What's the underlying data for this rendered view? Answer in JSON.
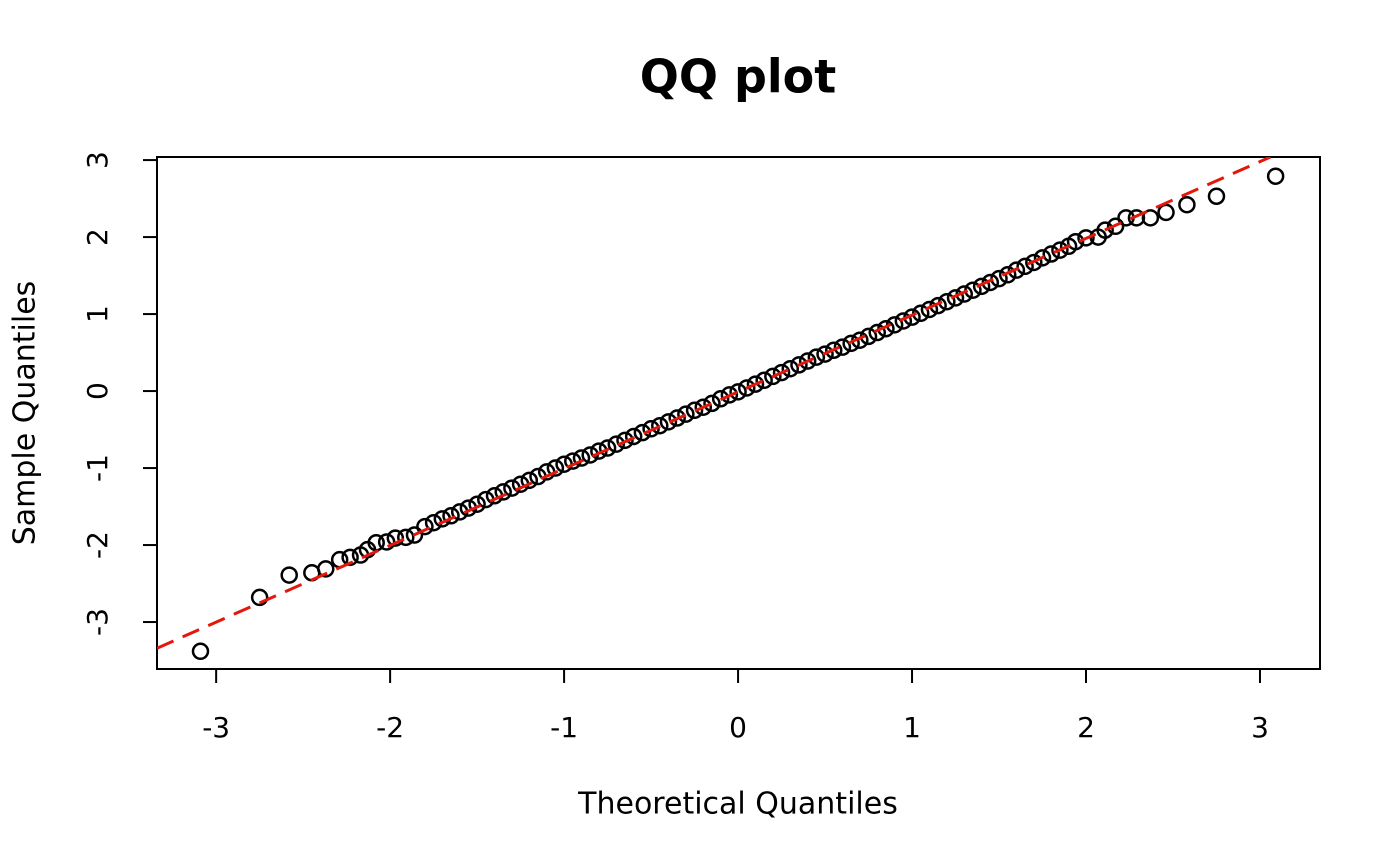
{
  "chart_data": {
    "type": "scatter",
    "title": "QQ plot",
    "x_label": "Theoretical Quantiles",
    "y_label": "Sample Quantiles",
    "x": [
      -3.09,
      -2.75,
      -2.58,
      -2.45,
      -2.37,
      -2.29,
      -2.23,
      -2.17,
      -2.13,
      -2.08,
      -2.02,
      -1.97,
      -1.91,
      -1.86,
      -1.8,
      -1.75,
      -1.7,
      -1.65,
      -1.6,
      -1.55,
      -1.5,
      -1.45,
      -1.4,
      -1.35,
      -1.3,
      -1.25,
      -1.2,
      -1.15,
      -1.1,
      -1.05,
      -1.0,
      -0.95,
      -0.9,
      -0.85,
      -0.8,
      -0.75,
      -0.7,
      -0.65,
      -0.6,
      -0.55,
      -0.5,
      -0.45,
      -0.4,
      -0.35,
      -0.3,
      -0.25,
      -0.2,
      -0.15,
      -0.1,
      -0.05,
      0,
      0.05,
      0.1,
      0.15,
      0.2,
      0.25,
      0.3,
      0.35,
      0.4,
      0.45,
      0.5,
      0.55,
      0.6,
      0.65,
      0.7,
      0.75,
      0.8,
      0.85,
      0.9,
      0.95,
      1.0,
      1.05,
      1.1,
      1.15,
      1.2,
      1.25,
      1.3,
      1.35,
      1.4,
      1.45,
      1.5,
      1.55,
      1.6,
      1.65,
      1.7,
      1.75,
      1.8,
      1.85,
      1.9,
      1.94,
      2.0,
      2.07,
      2.11,
      2.17,
      2.23,
      2.29,
      2.37,
      2.46,
      2.58,
      2.75,
      3.09
    ],
    "y": [
      -3.38,
      -2.68,
      -2.39,
      -2.36,
      -2.31,
      -2.19,
      -2.16,
      -2.13,
      -2.06,
      -1.97,
      -1.96,
      -1.91,
      -1.9,
      -1.87,
      -1.76,
      -1.71,
      -1.66,
      -1.62,
      -1.57,
      -1.52,
      -1.47,
      -1.41,
      -1.36,
      -1.31,
      -1.26,
      -1.21,
      -1.16,
      -1.11,
      -1.05,
      -1.0,
      -0.95,
      -0.91,
      -0.87,
      -0.83,
      -0.78,
      -0.74,
      -0.69,
      -0.64,
      -0.59,
      -0.54,
      -0.49,
      -0.45,
      -0.4,
      -0.35,
      -0.3,
      -0.25,
      -0.21,
      -0.16,
      -0.1,
      -0.05,
      -0.01,
      0.04,
      0.09,
      0.14,
      0.19,
      0.24,
      0.29,
      0.34,
      0.39,
      0.44,
      0.48,
      0.53,
      0.57,
      0.62,
      0.66,
      0.71,
      0.76,
      0.81,
      0.86,
      0.91,
      0.96,
      1.01,
      1.06,
      1.11,
      1.16,
      1.21,
      1.26,
      1.31,
      1.36,
      1.41,
      1.46,
      1.51,
      1.57,
      1.62,
      1.67,
      1.73,
      1.78,
      1.83,
      1.88,
      1.94,
      1.99,
      2.0,
      2.09,
      2.14,
      2.25,
      2.25,
      2.25,
      2.32,
      2.42,
      2.53,
      2.79
    ],
    "color": "#000000",
    "reference_line": {
      "x": [
        -3.34,
        3.06
      ],
      "y": [
        -3.34,
        3.04
      ],
      "color": "#e3170a"
    },
    "xlim": [
      -3.34,
      3.345
    ],
    "ylim": [
      -3.61,
      3.04
    ],
    "xticks": [
      -3,
      -2,
      -1,
      0,
      1,
      2,
      3
    ],
    "yticks": [
      -3,
      -2,
      -1,
      0,
      1,
      2,
      3
    ]
  }
}
